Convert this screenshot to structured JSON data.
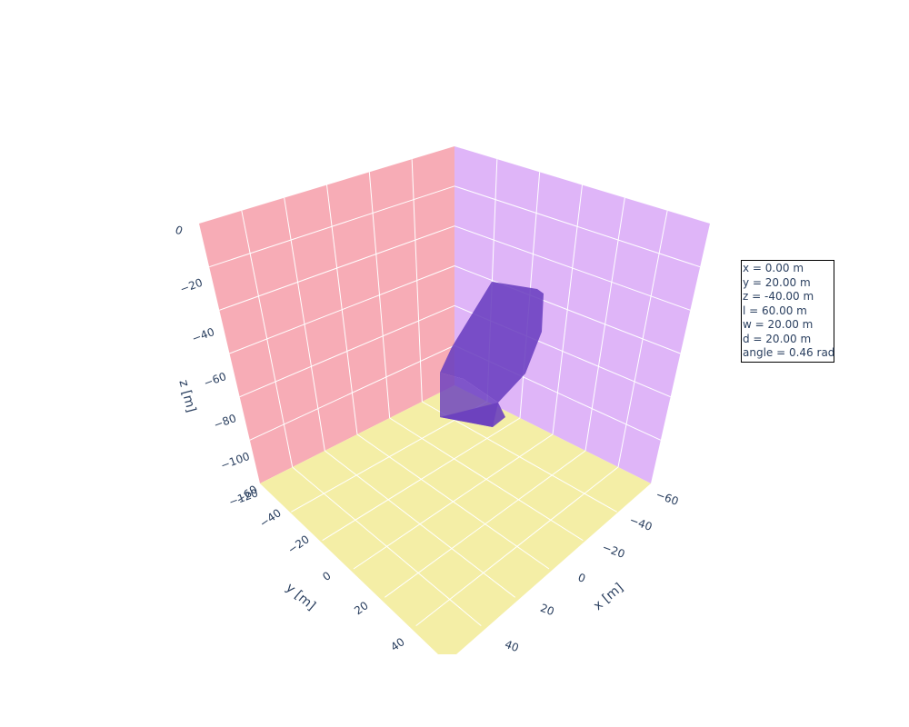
{
  "chart_data": {
    "type": "3d-mesh",
    "title": "",
    "axes": {
      "x": {
        "label": "x [m]",
        "range": [
          -60,
          60
        ],
        "ticks": [
          "−60",
          "−40",
          "−20",
          "0",
          "20",
          "40"
        ]
      },
      "y": {
        "label": "y [m]",
        "range": [
          -60,
          60
        ],
        "ticks": [
          "−60",
          "−40",
          "−20",
          "0",
          "20",
          "40"
        ]
      },
      "z": {
        "label": "z [m]",
        "range": [
          -120,
          0
        ],
        "ticks": [
          "−120",
          "−100",
          "−80",
          "−60",
          "−40",
          "−20",
          "0"
        ]
      }
    },
    "walls": {
      "xz_wall_color": "#f7acb6",
      "yz_wall_color": "#dfb5f8",
      "floor_color": "#f4eea6",
      "grid_color": "#ffffff"
    },
    "body": {
      "color": "#6a3fbf",
      "opacity": 0.85,
      "center": {
        "x": 0,
        "y": 20,
        "z": -40
      },
      "length": 60,
      "width": 20,
      "depth": 20,
      "angle": 0.46
    },
    "annotation": [
      "x = 0.00 m",
      "y = 20.00 m",
      "z = -40.00 m",
      "l = 60.00 m",
      "w = 20.00 m",
      "d = 20.00 m",
      "angle = 0.46 rad"
    ]
  }
}
